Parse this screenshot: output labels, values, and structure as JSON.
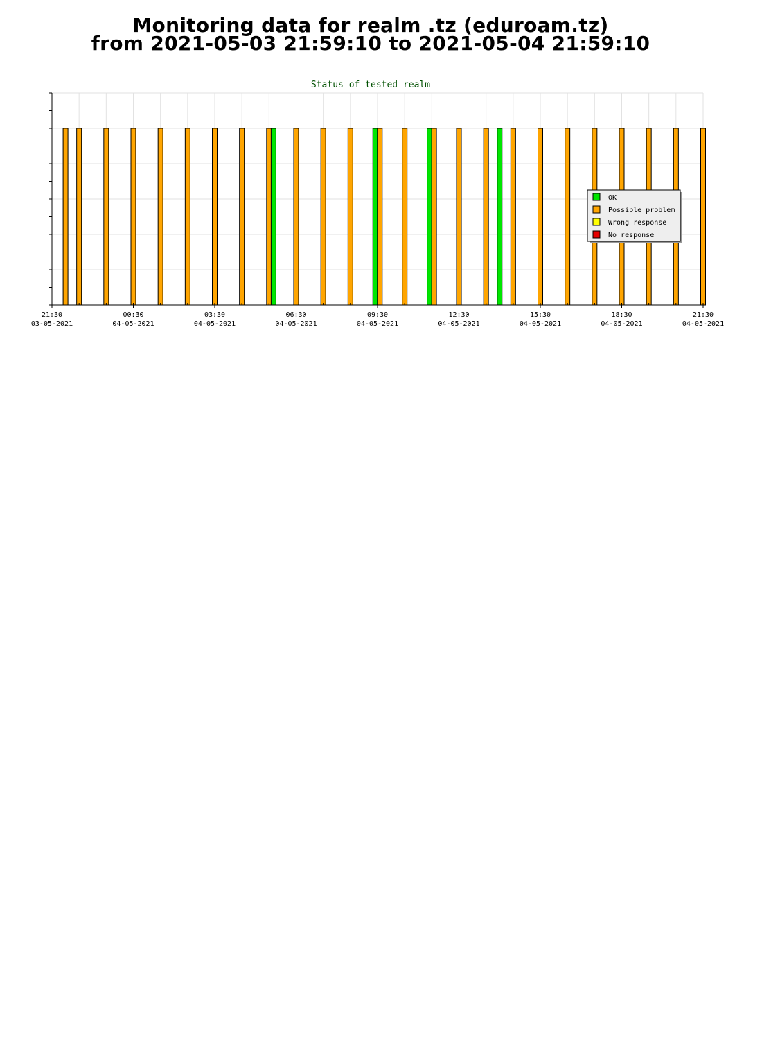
{
  "page": {
    "title_line1": "Monitoring data for realm .tz  (eduroam.tz)",
    "title_line2": "from 2021-05-03 21:59:10 to 2021-05-04 21:59:10"
  },
  "chart_data": {
    "type": "bar",
    "title": "Status of tested realm",
    "xlabel": "",
    "ylabel": "",
    "grid": true,
    "legend_position": "right",
    "x_ticks": [
      {
        "time": "21:30",
        "date": "03-05-2021"
      },
      {
        "time": "00:30",
        "date": "04-05-2021"
      },
      {
        "time": "03:30",
        "date": "04-05-2021"
      },
      {
        "time": "06:30",
        "date": "04-05-2021"
      },
      {
        "time": "09:30",
        "date": "04-05-2021"
      },
      {
        "time": "12:30",
        "date": "04-05-2021"
      },
      {
        "time": "15:30",
        "date": "04-05-2021"
      },
      {
        "time": "18:30",
        "date": "04-05-2021"
      },
      {
        "time": "21:30",
        "date": "04-05-2021"
      }
    ],
    "x_range": [
      "2021-05-03 21:30",
      "2021-05-04 21:30"
    ],
    "legend": [
      {
        "label": "OK",
        "color": "#00e600"
      },
      {
        "label": "Possible problem",
        "color": "#ffa500"
      },
      {
        "label": "Wrong response",
        "color": "#ffff00"
      },
      {
        "label": "No response",
        "color": "#e60000"
      }
    ],
    "series_colors": {
      "ok": "#00e600",
      "problem": "#ffa500"
    },
    "bars": [
      {
        "time": "2021-05-03 22:00",
        "status": "problem"
      },
      {
        "time": "2021-05-03 22:30",
        "status": "problem"
      },
      {
        "time": "2021-05-03 23:30",
        "status": "problem"
      },
      {
        "time": "2021-05-04 00:30",
        "status": "problem"
      },
      {
        "time": "2021-05-04 01:30",
        "status": "problem"
      },
      {
        "time": "2021-05-04 02:30",
        "status": "problem"
      },
      {
        "time": "2021-05-04 03:30",
        "status": "problem"
      },
      {
        "time": "2021-05-04 04:30",
        "status": "problem"
      },
      {
        "time": "2021-05-04 05:30",
        "status": "problem"
      },
      {
        "time": "2021-05-04 05:40",
        "status": "ok"
      },
      {
        "time": "2021-05-04 06:30",
        "status": "problem"
      },
      {
        "time": "2021-05-04 07:30",
        "status": "problem"
      },
      {
        "time": "2021-05-04 08:30",
        "status": "problem"
      },
      {
        "time": "2021-05-04 09:25",
        "status": "ok"
      },
      {
        "time": "2021-05-04 09:35",
        "status": "problem"
      },
      {
        "time": "2021-05-04 10:30",
        "status": "problem"
      },
      {
        "time": "2021-05-04 11:25",
        "status": "ok"
      },
      {
        "time": "2021-05-04 11:35",
        "status": "problem"
      },
      {
        "time": "2021-05-04 12:30",
        "status": "problem"
      },
      {
        "time": "2021-05-04 13:30",
        "status": "problem"
      },
      {
        "time": "2021-05-04 14:00",
        "status": "ok"
      },
      {
        "time": "2021-05-04 14:30",
        "status": "problem"
      },
      {
        "time": "2021-05-04 15:30",
        "status": "problem"
      },
      {
        "time": "2021-05-04 16:30",
        "status": "problem"
      },
      {
        "time": "2021-05-04 17:30",
        "status": "problem"
      },
      {
        "time": "2021-05-04 18:30",
        "status": "problem"
      },
      {
        "time": "2021-05-04 19:30",
        "status": "problem"
      },
      {
        "time": "2021-05-04 20:30",
        "status": "problem"
      },
      {
        "time": "2021-05-04 21:30",
        "status": "problem"
      }
    ]
  }
}
